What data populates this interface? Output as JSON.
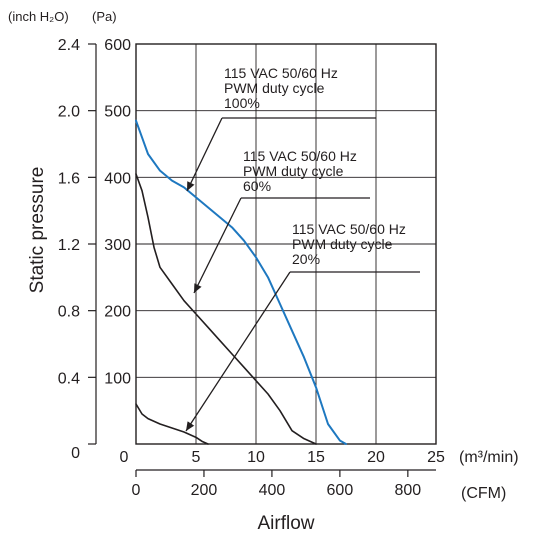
{
  "chart_data": {
    "type": "line",
    "xlabel": "Airflow",
    "ylabel": "Static pressure",
    "x_unit_primary": "(m³/min)",
    "x_unit_secondary": "(CFM)",
    "y_unit_left": "(inch H₂O)",
    "y_unit_right": "(Pa)",
    "xlim": [
      0,
      25
    ],
    "ylim": [
      0,
      600
    ],
    "x_ticks": [
      "0",
      "5",
      "10",
      "15",
      "20",
      "25"
    ],
    "cfm_ticks": [
      "0",
      "200",
      "400",
      "600",
      "800"
    ],
    "y_ticks_pa": [
      "600",
      "500",
      "400",
      "300",
      "200",
      "100"
    ],
    "y_ticks_inch": [
      "2.4",
      "2.0",
      "1.6",
      "1.2",
      "0.8",
      "0.4",
      "0"
    ],
    "grid": true,
    "series": [
      {
        "name": "115 VAC 50/60 Hz PWM duty cycle 100%",
        "color": "#1e78c0",
        "x": [
          0,
          0.5,
          1,
          2,
          3,
          4,
          5,
          6,
          7,
          8,
          9,
          10,
          11,
          12,
          13,
          14,
          15,
          16,
          17,
          17.5
        ],
        "y": [
          485,
          460,
          435,
          410,
          395,
          385,
          370,
          355,
          340,
          325,
          305,
          280,
          250,
          210,
          170,
          130,
          85,
          30,
          5,
          0
        ]
      },
      {
        "name": "115 VAC 50/60 Hz PWM duty cycle 60%",
        "color": "#231f20",
        "x": [
          0,
          0.5,
          1,
          1.5,
          2,
          3,
          4,
          5,
          6,
          7,
          8,
          9,
          10,
          11,
          12,
          13,
          14,
          15
        ],
        "y": [
          405,
          380,
          340,
          295,
          265,
          240,
          215,
          195,
          175,
          155,
          135,
          115,
          95,
          75,
          50,
          20,
          8,
          0
        ]
      },
      {
        "name": "115 VAC 50/60 Hz PWM duty cycle 20%",
        "color": "#231f20",
        "x": [
          0,
          0.5,
          1,
          2,
          3,
          4,
          5,
          5.5,
          6
        ],
        "y": [
          60,
          45,
          38,
          30,
          24,
          18,
          10,
          4,
          0
        ]
      }
    ],
    "annotations": [
      {
        "lines": [
          "115 VAC  50/60 Hz",
          "PWM duty cycle",
          "100%"
        ]
      },
      {
        "lines": [
          "115 VAC  50/60 Hz",
          "PWM duty cycle",
          "60%"
        ]
      },
      {
        "lines": [
          "115 VAC  50/60 Hz",
          "PWM duty cycle",
          "20%"
        ]
      }
    ]
  }
}
